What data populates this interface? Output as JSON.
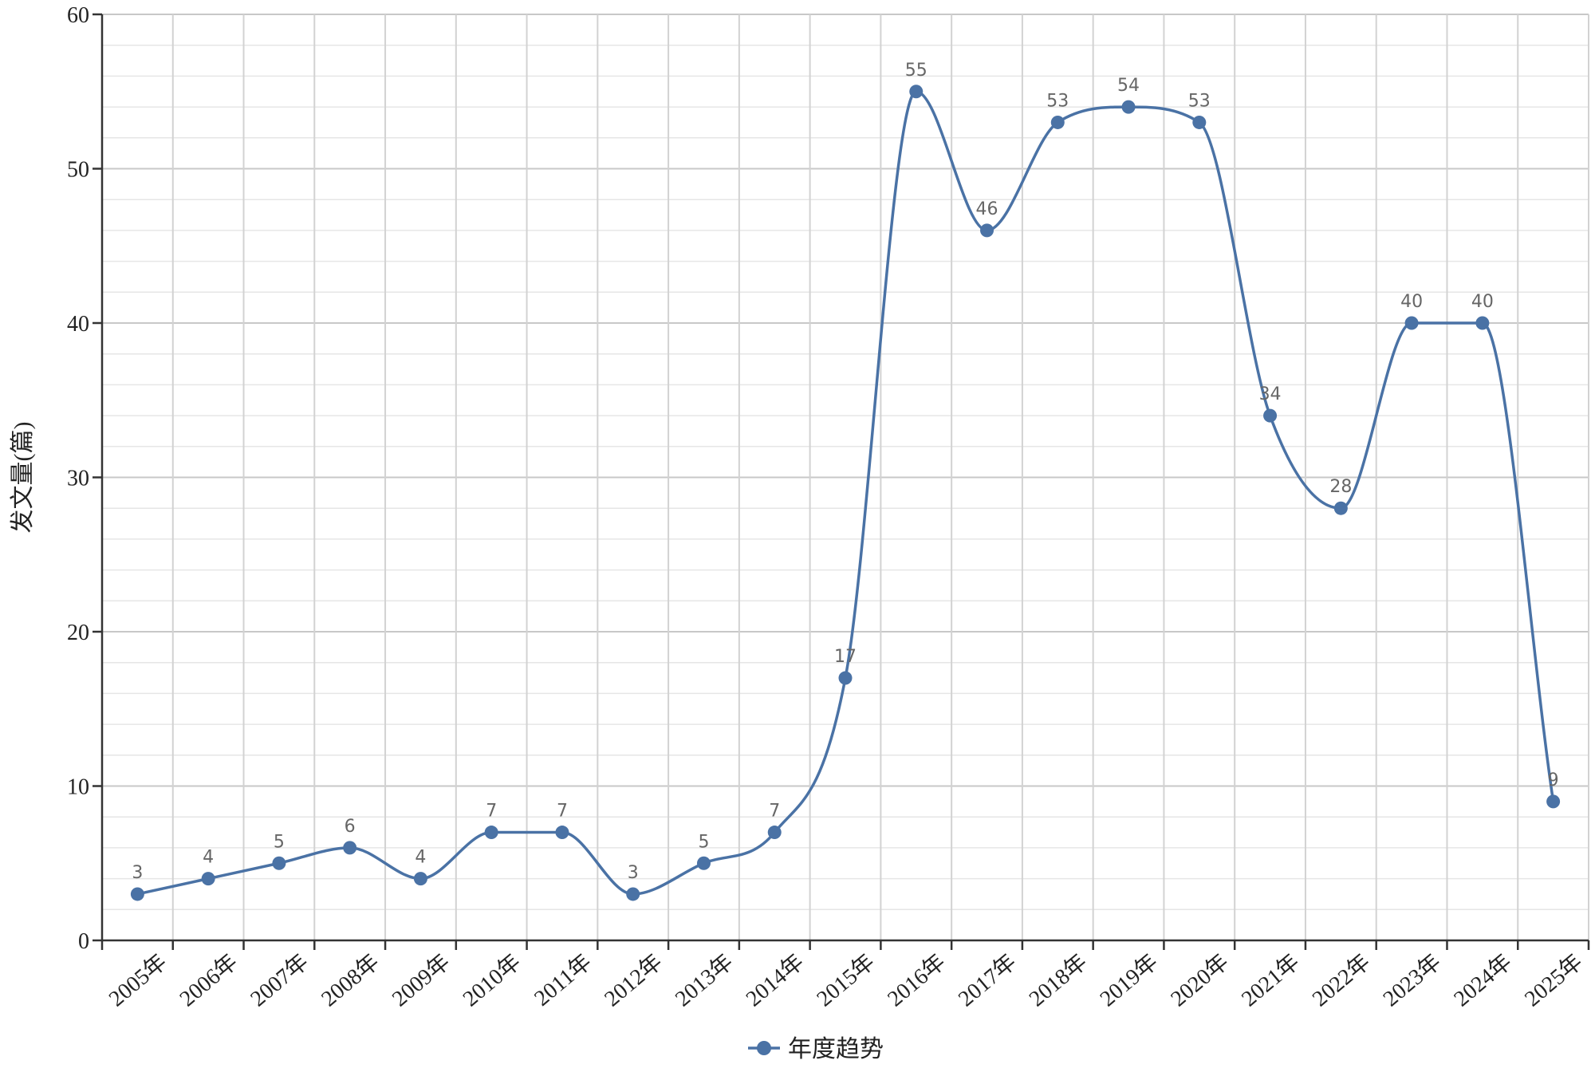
{
  "chart_data": {
    "type": "line",
    "smooth": true,
    "categories": [
      "2005年",
      "2006年",
      "2007年",
      "2008年",
      "2009年",
      "2010年",
      "2011年",
      "2012年",
      "2013年",
      "2014年",
      "2015年",
      "2016年",
      "2017年",
      "2018年",
      "2019年",
      "2020年",
      "2021年",
      "2022年",
      "2023年",
      "2024年",
      "2025年"
    ],
    "series": [
      {
        "name": "年度趋势",
        "color": "#4a72a5",
        "values": [
          3,
          4,
          5,
          6,
          4,
          7,
          7,
          3,
          5,
          7,
          17,
          55,
          46,
          53,
          54,
          53,
          34,
          28,
          40,
          40,
          9
        ]
      }
    ],
    "xlabel": "",
    "ylabel": "发文量(篇)",
    "ylim": [
      0,
      60
    ],
    "yticks": [
      0,
      10,
      20,
      30,
      40,
      50,
      60
    ],
    "grid": true,
    "data_labels": true,
    "legend": {
      "position": "bottom-center",
      "entries": [
        "年度趋势"
      ]
    }
  }
}
